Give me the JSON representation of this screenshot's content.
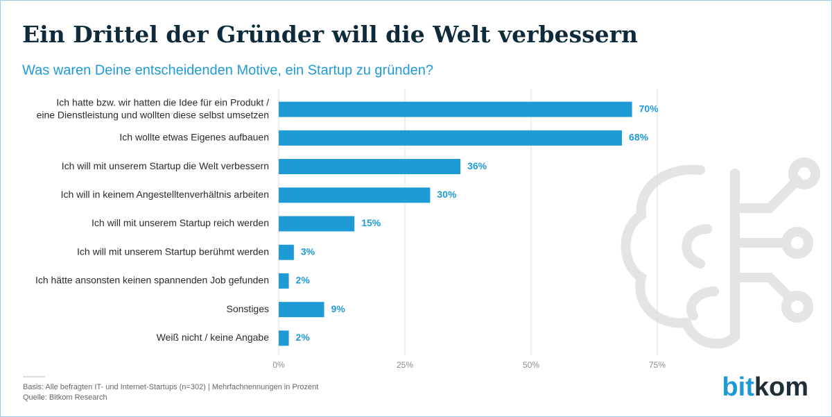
{
  "chart_data": {
    "type": "bar",
    "orientation": "horizontal",
    "title": "Ein Drittel der Gründer will die Welt verbessern",
    "subtitle": "Was waren Deine entscheidenden Motive, ein Startup zu gründen?",
    "categories": [
      "Ich hatte bzw. wir hatten die Idee für ein Produkt /\neine Dienstleistung und wollten diese selbst umsetzen",
      "Ich wollte etwas Eigenes aufbauen",
      "Ich will mit unserem Startup die Welt verbessern",
      "Ich will in keinem Angestelltenverhältnis arbeiten",
      "Ich will mit unserem Startup reich werden",
      "Ich will mit unserem Startup berühmt werden",
      "Ich hätte ansonsten keinen spannenden Job gefunden",
      "Sonstiges",
      "Weiß nicht / keine Angabe"
    ],
    "values": [
      70,
      68,
      36,
      30,
      15,
      3,
      2,
      9,
      2
    ],
    "value_labels": [
      "70%",
      "68%",
      "36%",
      "30%",
      "15%",
      "3%",
      "2%",
      "9%",
      "2%"
    ],
    "color": "#1e9ad6",
    "xlim": [
      0,
      75
    ],
    "xticks": [
      {
        "value": 0,
        "label": "0%"
      },
      {
        "value": 25,
        "label": "25%"
      },
      {
        "value": 50,
        "label": "50%"
      },
      {
        "value": 75,
        "label": "75%"
      }
    ],
    "grid": true,
    "footnote": [
      "Basis: Alle befragten IT- und Internet-Startups (n=302) | Mehrfachnennungen in Prozent",
      "Quelle: Bitkom Research"
    ],
    "logo": [
      "bit",
      "kom"
    ]
  }
}
